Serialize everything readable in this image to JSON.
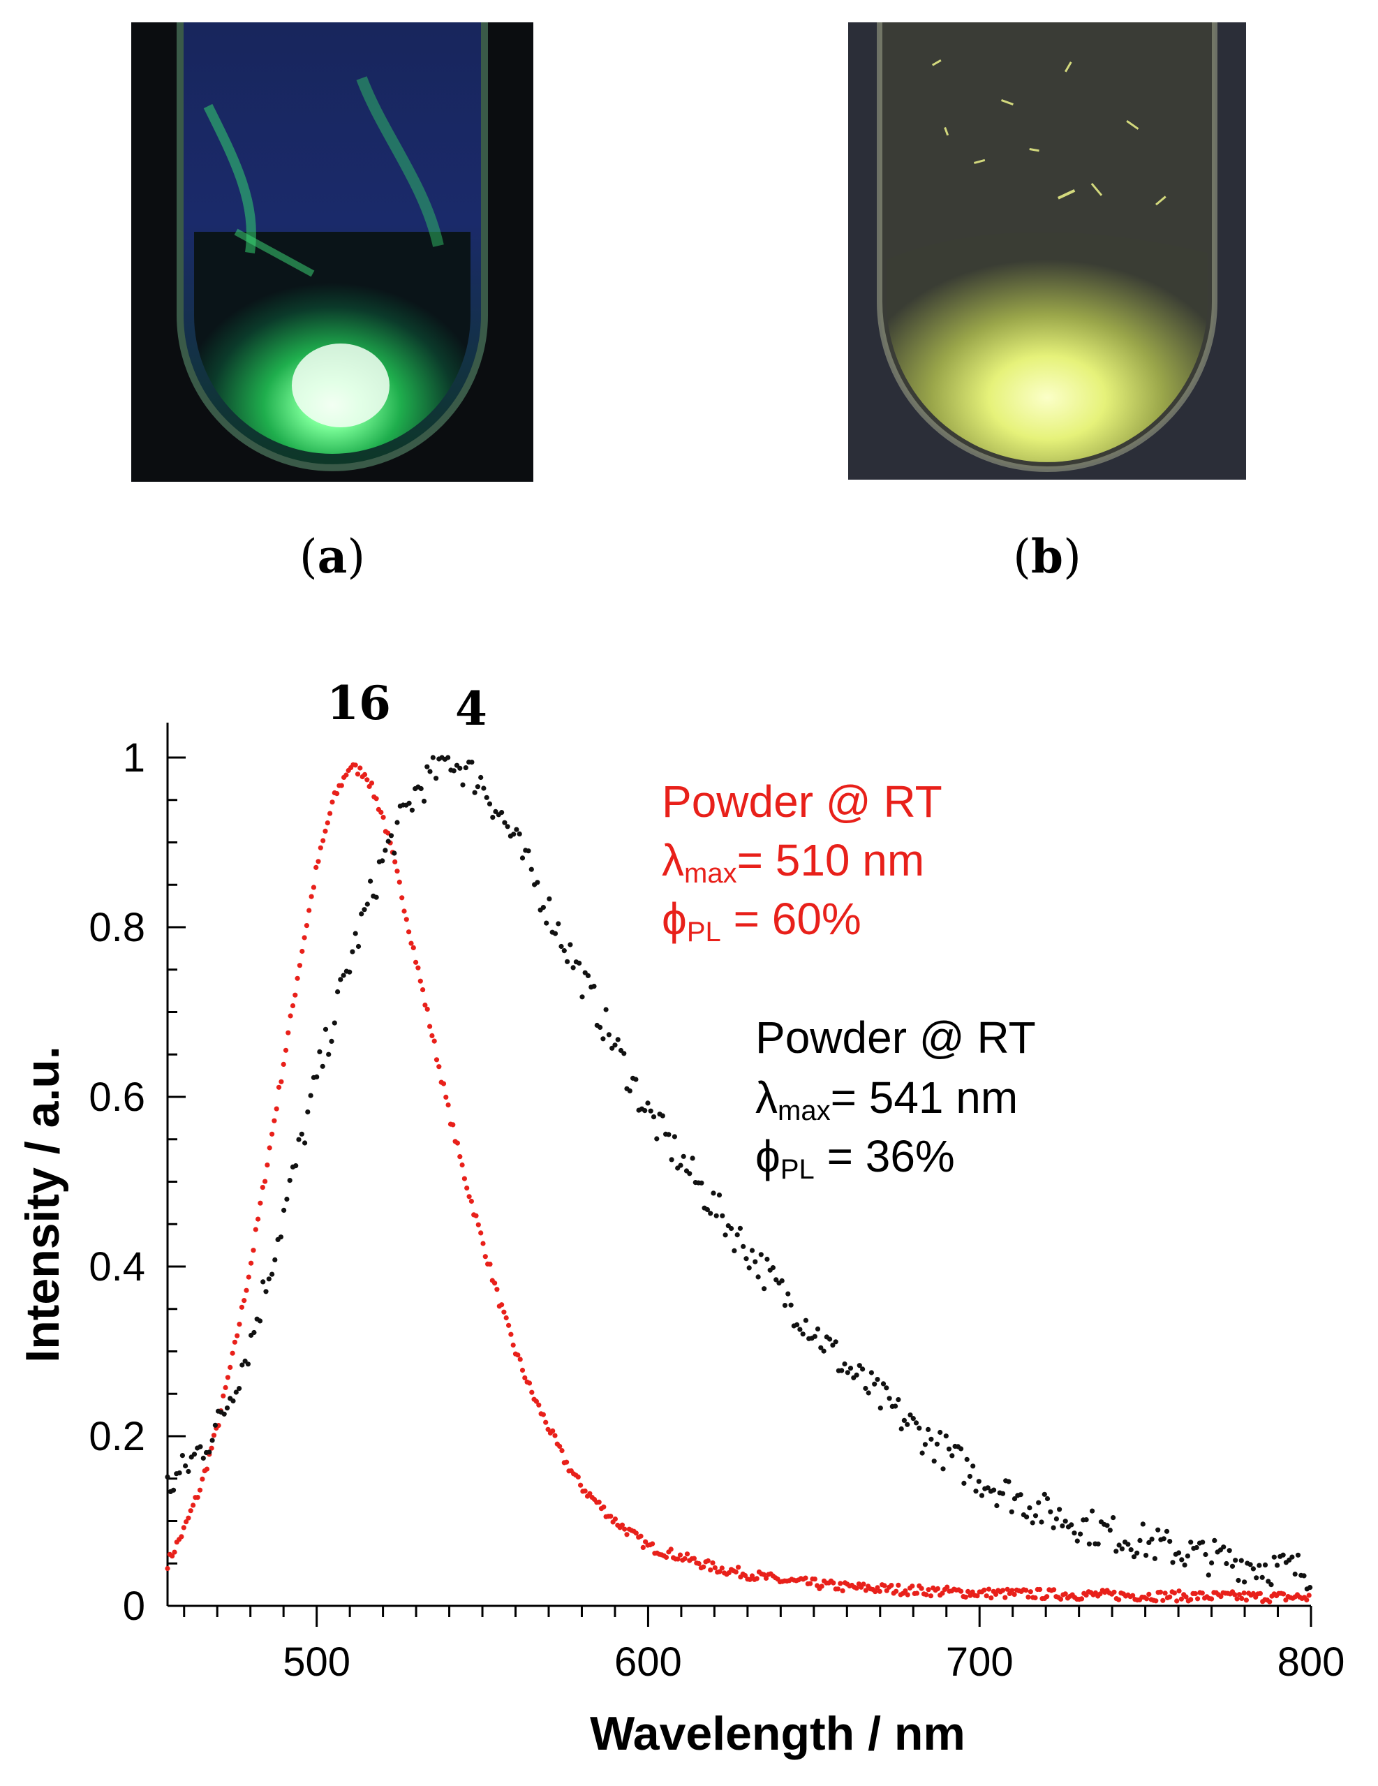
{
  "panels": [
    {
      "label": "a",
      "glow_color": "#33e07a",
      "description_icon": "test-tube-green-icon"
    },
    {
      "label": "b",
      "glow_color": "#e8f56a",
      "description_icon": "test-tube-yellow-icon"
    }
  ],
  "chart_data": {
    "type": "scatter",
    "title": "",
    "xlabel": "Wavelength / nm",
    "ylabel": "Intensity / a.u.",
    "xlim": [
      455,
      800
    ],
    "ylim": [
      0,
      1.0
    ],
    "xticks": [
      500,
      600,
      700,
      800
    ],
    "yticks": [
      0,
      0.2,
      0.4,
      0.6,
      0.8,
      1
    ],
    "ytick_labels": [
      "0",
      "0.2",
      "0.4",
      "0.6",
      "0.8",
      "1"
    ],
    "series": [
      {
        "name": "16",
        "color": "#e8201a",
        "peak_nm": 510,
        "fwhm_left": 30,
        "fwhm_right": 50,
        "points": [
          [
            455,
            0.05
          ],
          [
            460,
            0.09
          ],
          [
            465,
            0.14
          ],
          [
            470,
            0.21
          ],
          [
            475,
            0.3
          ],
          [
            480,
            0.4
          ],
          [
            485,
            0.52
          ],
          [
            490,
            0.64
          ],
          [
            495,
            0.76
          ],
          [
            500,
            0.87
          ],
          [
            505,
            0.95
          ],
          [
            510,
            0.99
          ],
          [
            515,
            0.98
          ],
          [
            520,
            0.93
          ],
          [
            525,
            0.85
          ],
          [
            530,
            0.76
          ],
          [
            535,
            0.67
          ],
          [
            540,
            0.58
          ],
          [
            545,
            0.5
          ],
          [
            550,
            0.43
          ],
          [
            555,
            0.36
          ],
          [
            560,
            0.3
          ],
          [
            565,
            0.25
          ],
          [
            570,
            0.21
          ],
          [
            575,
            0.17
          ],
          [
            580,
            0.14
          ],
          [
            590,
            0.1
          ],
          [
            600,
            0.07
          ],
          [
            620,
            0.045
          ],
          [
            640,
            0.03
          ],
          [
            660,
            0.022
          ],
          [
            700,
            0.015
          ],
          [
            750,
            0.012
          ],
          [
            800,
            0.01
          ]
        ]
      },
      {
        "name": "4",
        "color": "#111111",
        "peak_nm": 541,
        "fwhm_left": 55,
        "fwhm_right": 85,
        "points": [
          [
            455,
            0.14
          ],
          [
            460,
            0.16
          ],
          [
            470,
            0.21
          ],
          [
            480,
            0.31
          ],
          [
            490,
            0.46
          ],
          [
            500,
            0.62
          ],
          [
            510,
            0.76
          ],
          [
            520,
            0.88
          ],
          [
            530,
            0.96
          ],
          [
            540,
            1.0
          ],
          [
            550,
            0.97
          ],
          [
            560,
            0.9
          ],
          [
            570,
            0.82
          ],
          [
            580,
            0.74
          ],
          [
            590,
            0.66
          ],
          [
            600,
            0.58
          ],
          [
            620,
            0.47
          ],
          [
            640,
            0.37
          ],
          [
            660,
            0.28
          ],
          [
            680,
            0.21
          ],
          [
            700,
            0.15
          ],
          [
            720,
            0.11
          ],
          [
            740,
            0.085
          ],
          [
            760,
            0.065
          ],
          [
            780,
            0.05
          ],
          [
            800,
            0.04
          ]
        ]
      }
    ],
    "annotations": [
      {
        "color": "#e8201a",
        "line1": "Powder @ RT",
        "lambda": "λ",
        "lambda_sub": "max",
        "lambda_rest": "= 510 nm",
        "phi": "ϕ",
        "phi_sub": "PL",
        "phi_rest": " = 60%"
      },
      {
        "color": "#000000",
        "line1": "Powder @ RT",
        "lambda": "λ",
        "lambda_sub": "max",
        "lambda_rest": "= 541 nm",
        "phi": "ϕ",
        "phi_sub": "PL",
        "phi_rest": " = 36%"
      }
    ]
  }
}
